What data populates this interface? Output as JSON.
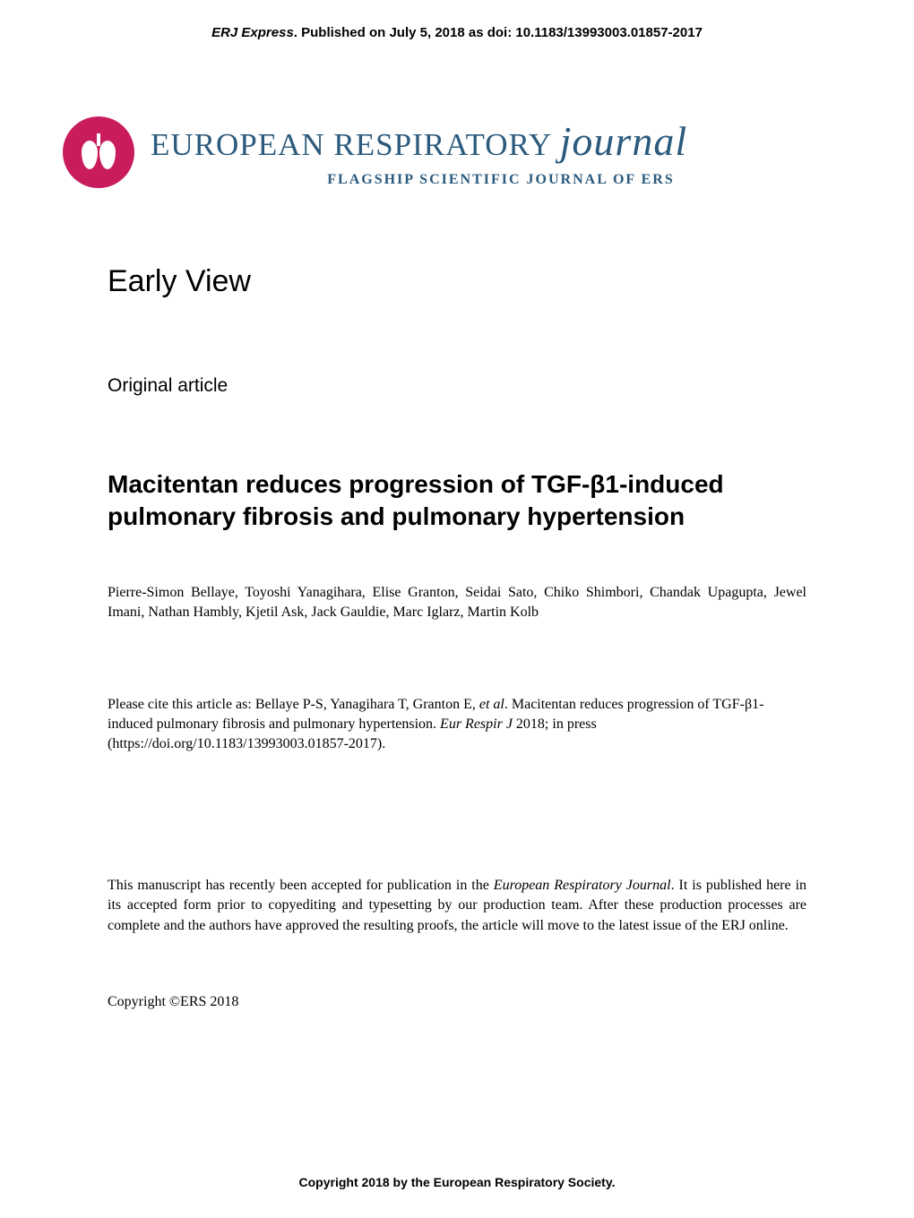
{
  "header": {
    "journal_express": "ERJ Express",
    "published_text": ". Published on July 5, 2018 as doi: 10.1183/13993003.01857-2017"
  },
  "logo": {
    "journal_name_main": "EUROPEAN RESPIRATORY ",
    "journal_name_italic": "journal",
    "subtitle": "FLAGSHIP SCIENTIFIC JOURNAL OF ERS"
  },
  "early_view": "Early View",
  "article_type": "Original article",
  "title": "Macitentan reduces progression of TGF-β1-induced pulmonary fibrosis and pulmonary hypertension",
  "authors": "Pierre-Simon Bellaye, Toyoshi Yanagihara, Elise Granton, Seidai Sato, Chiko Shimbori, Chandak Upagupta, Jewel Imani, Nathan Hambly, Kjetil Ask, Jack Gauldie, Marc Iglarz, Martin Kolb",
  "citation": {
    "prefix": "Please cite this article as: Bellaye P-S, Yanagihara T, Granton E, ",
    "etal": "et al",
    "middle": ". Macitentan reduces progression of TGF-β1-induced pulmonary fibrosis and pulmonary hypertension. ",
    "journal_abbr": "Eur Respir J",
    "suffix": " 2018; in press (https://doi.org/10.1183/13993003.01857-2017)."
  },
  "disclaimer": {
    "prefix": "This manuscript has recently been accepted for publication in the ",
    "journal_name": "European Respiratory Journal",
    "suffix": ". It is published here in its accepted form prior to copyediting and typesetting by our production team. After these production processes are complete and the authors have approved the resulting proofs, the article will move to the latest issue of the ERJ online."
  },
  "copyright": "Copyright ©ERS 2018",
  "footer": "Copyright 2018 by the European Respiratory Society.",
  "colors": {
    "logo_bg": "#c91c5c",
    "journal_blue": "#2b5a7d",
    "text": "#000000",
    "background": "#ffffff"
  }
}
